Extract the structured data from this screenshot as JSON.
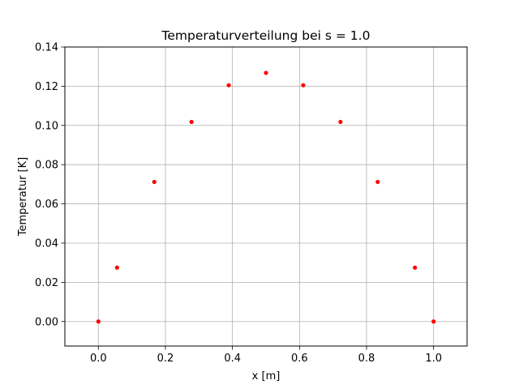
{
  "chart_data": {
    "type": "scatter",
    "title": "Temperaturverteilung bei s = 1.0",
    "xlabel": "x [m]",
    "ylabel": "Temperatur [K]",
    "xlim": [
      -0.1,
      1.1
    ],
    "ylim": [
      -0.0125,
      0.14
    ],
    "xticks": [
      0.0,
      0.2,
      0.4,
      0.6,
      0.8,
      1.0
    ],
    "xtick_labels": [
      "0.0",
      "0.2",
      "0.4",
      "0.6",
      "0.8",
      "1.0"
    ],
    "yticks": [
      0.0,
      0.02,
      0.04,
      0.06,
      0.08,
      0.1,
      0.12,
      0.14
    ],
    "ytick_labels": [
      "0.00",
      "0.02",
      "0.04",
      "0.06",
      "0.08",
      "0.10",
      "0.12",
      "0.14"
    ],
    "grid": true,
    "series": [
      {
        "color": "#ff0000",
        "points": [
          {
            "x": 0.0,
            "y": 0.0
          },
          {
            "x": 0.0556,
            "y": 0.0275
          },
          {
            "x": 0.1667,
            "y": 0.0712
          },
          {
            "x": 0.2778,
            "y": 0.1018
          },
          {
            "x": 0.3889,
            "y": 0.1205
          },
          {
            "x": 0.5,
            "y": 0.1268
          },
          {
            "x": 0.6111,
            "y": 0.1205
          },
          {
            "x": 0.7222,
            "y": 0.1018
          },
          {
            "x": 0.8333,
            "y": 0.0712
          },
          {
            "x": 0.9444,
            "y": 0.0275
          },
          {
            "x": 1.0,
            "y": 0.0
          }
        ]
      }
    ]
  }
}
